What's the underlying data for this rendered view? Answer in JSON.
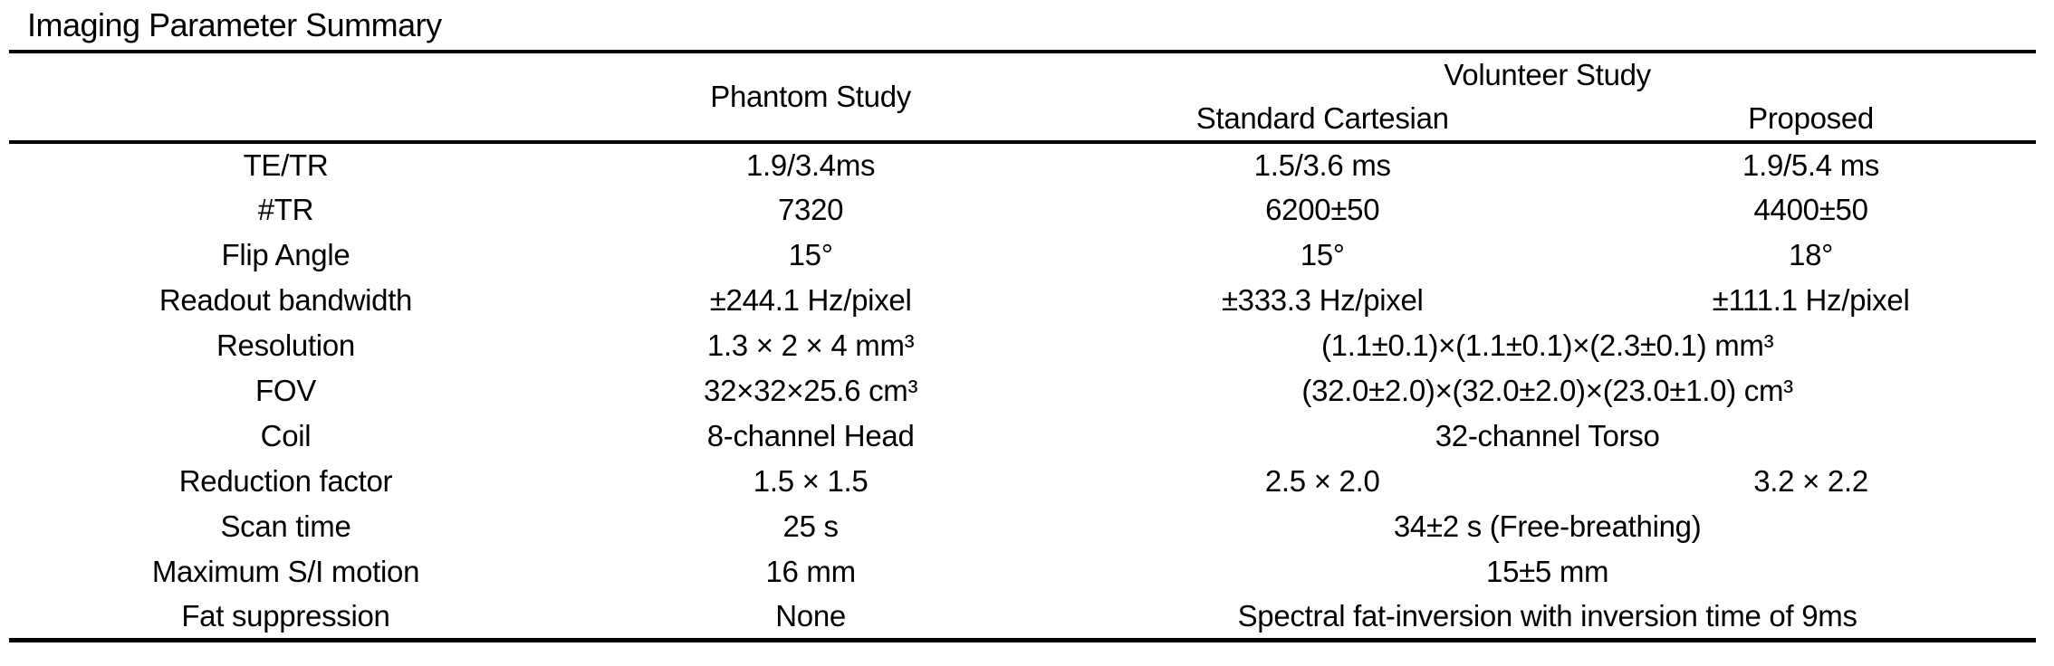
{
  "title": "Imaging Parameter Summary",
  "table": {
    "headers": {
      "phantom": "Phantom Study",
      "volunteer": "Volunteer Study",
      "standard": "Standard Cartesian",
      "proposed": "Proposed"
    },
    "rows": [
      {
        "param": "TE/TR",
        "phantom": "1.9/3.4ms",
        "standard": "1.5/3.6 ms",
        "proposed": "1.9/5.4 ms"
      },
      {
        "param": "#TR",
        "phantom": "7320",
        "standard": "6200±50",
        "proposed": "4400±50"
      },
      {
        "param": "Flip Angle",
        "phantom": "15°",
        "standard": "15°",
        "proposed": "18°"
      },
      {
        "param": "Readout bandwidth",
        "phantom": "±244.1 Hz/pixel",
        "standard": "±333.3 Hz/pixel",
        "proposed": "±111.1 Hz/pixel"
      },
      {
        "param": "Resolution",
        "phantom": "1.3 × 2 × 4 mm³",
        "volunteer": "(1.1±0.1)×(1.1±0.1)×(2.3±0.1) mm³"
      },
      {
        "param": "FOV",
        "phantom": "32×32×25.6 cm³",
        "volunteer": "(32.0±2.0)×(32.0±2.0)×(23.0±1.0) cm³"
      },
      {
        "param": "Coil",
        "phantom": "8-channel Head",
        "volunteer": "32-channel Torso"
      },
      {
        "param": "Reduction factor",
        "phantom": "1.5 × 1.5",
        "standard": "2.5 × 2.0",
        "proposed": "3.2 × 2.2"
      },
      {
        "param": "Scan time",
        "phantom": "25 s",
        "volunteer": "34±2 s (Free-breathing)"
      },
      {
        "param": "Maximum S/I motion",
        "phantom": "16 mm",
        "volunteer": "15±5 mm"
      },
      {
        "param": "Fat suppression",
        "phantom": "None",
        "volunteer": "Spectral fat-inversion with inversion time of 9ms"
      }
    ]
  }
}
